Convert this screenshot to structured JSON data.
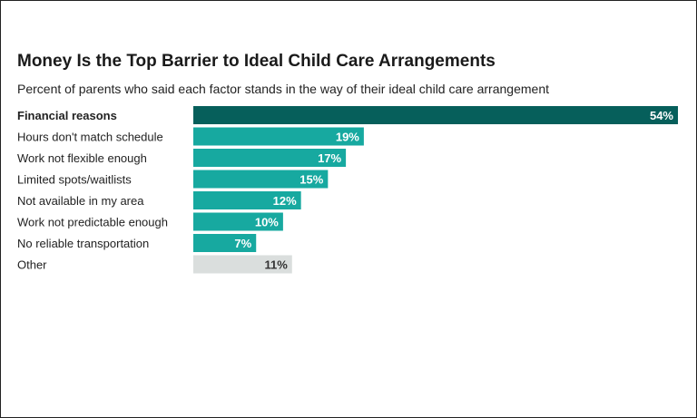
{
  "chart_data": {
    "type": "bar",
    "orientation": "horizontal",
    "title": "Money Is the Top Barrier to Ideal Child Care Arrangements",
    "subtitle": "Percent of parents who said each factor stands in the way of their ideal child care arrangement",
    "categories": [
      "Financial reasons",
      "Hours don't match schedule",
      "Work not flexible enough",
      "Limited spots/waitlists",
      "Not available in my area",
      "Work not predictable enough",
      "No reliable transportation",
      "Other"
    ],
    "values": [
      54,
      19,
      17,
      15,
      12,
      10,
      7,
      11
    ],
    "value_labels": [
      "54%",
      "19%",
      "17%",
      "15%",
      "12%",
      "10%",
      "7%",
      "11%"
    ],
    "xlim": [
      0,
      54
    ],
    "grid": false,
    "colors": {
      "highlight": "#065f5b",
      "default": "#17a9a0",
      "other": "#dadedd",
      "label_on_dark": "#ffffff",
      "label_on_light": "#333333"
    }
  }
}
